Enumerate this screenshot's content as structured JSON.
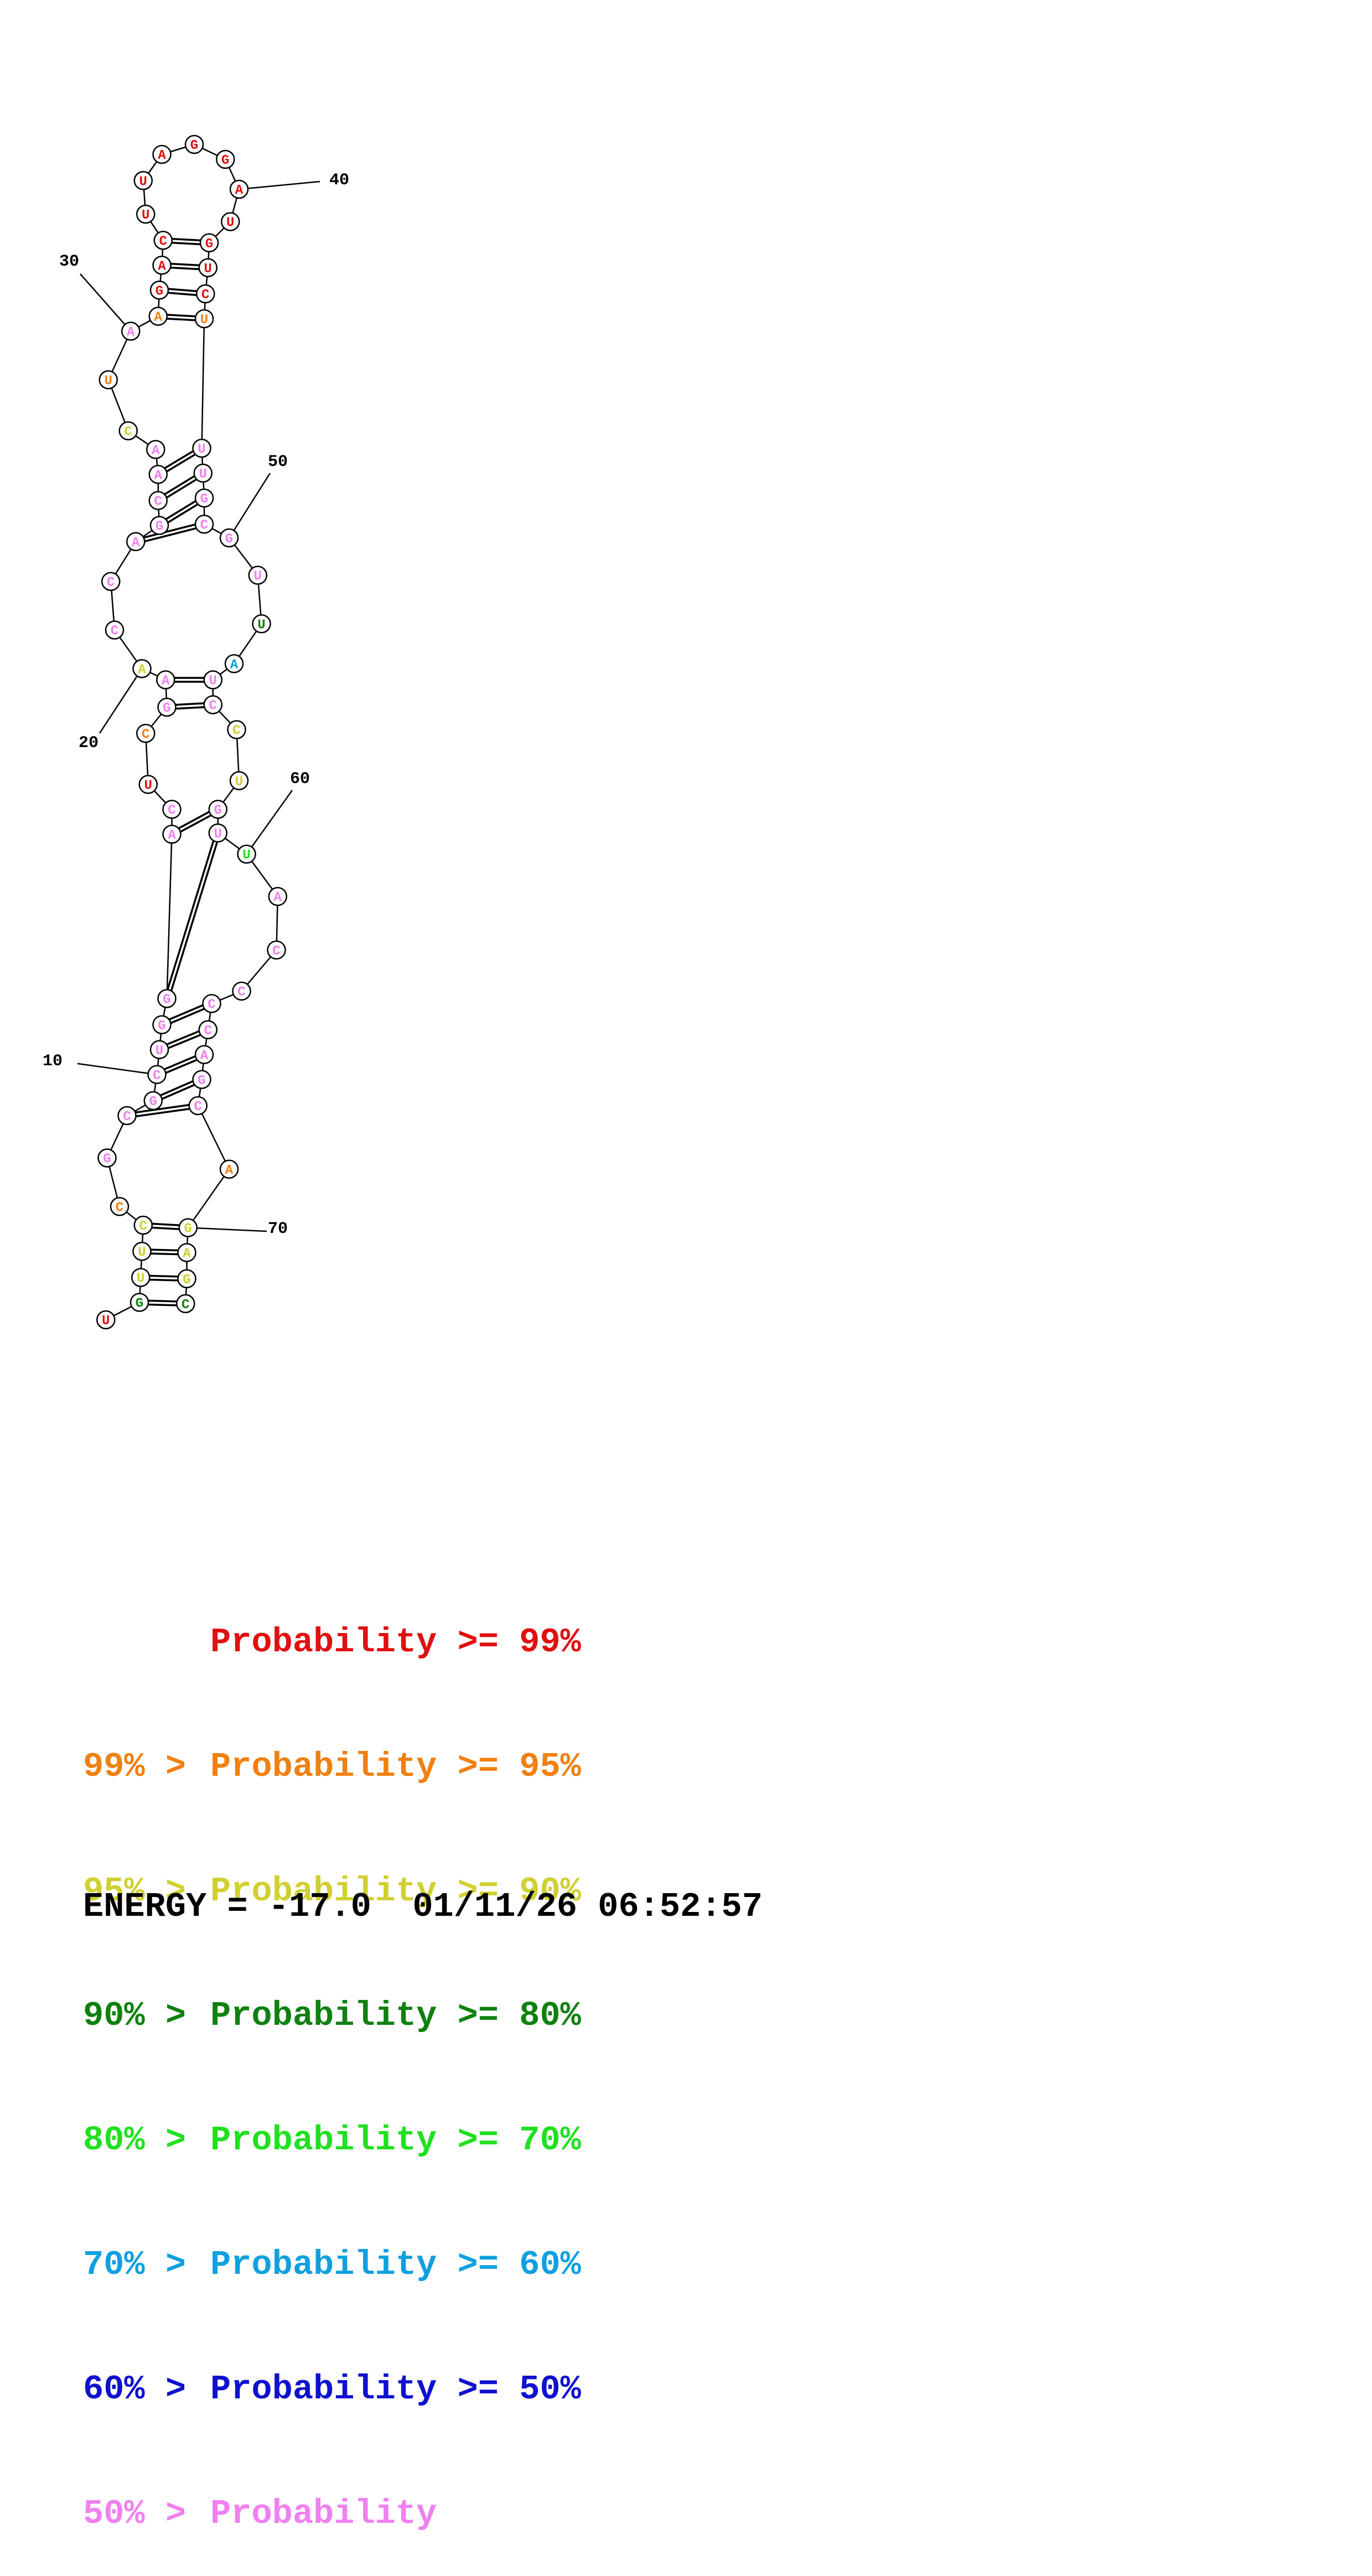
{
  "palette": {
    "R": "#e01010",
    "O": "#f08010",
    "Y": "#d0d030",
    "DG": "#108010",
    "LG": "#20e020",
    "C": "#10a0e0",
    "B": "#1010d0",
    "P": "#f080f0"
  },
  "chart_data": {
    "type": "rna_secondary_structure",
    "nucleotides": [
      {
        "n": 1,
        "base": "U",
        "prob": "R"
      },
      {
        "n": 2,
        "base": "G",
        "prob": "DG"
      },
      {
        "n": 3,
        "base": "U",
        "prob": "Y"
      },
      {
        "n": 4,
        "base": "U",
        "prob": "Y"
      },
      {
        "n": 5,
        "base": "C",
        "prob": "Y"
      },
      {
        "n": 6,
        "base": "C",
        "prob": "O"
      },
      {
        "n": 7,
        "base": "G",
        "prob": "P"
      },
      {
        "n": 8,
        "base": "C",
        "prob": "P"
      },
      {
        "n": 9,
        "base": "G",
        "prob": "P"
      },
      {
        "n": 10,
        "base": "C",
        "prob": "P"
      },
      {
        "n": 11,
        "base": "U",
        "prob": "P"
      },
      {
        "n": 12,
        "base": "G",
        "prob": "P"
      },
      {
        "n": 13,
        "base": "G",
        "prob": "P"
      },
      {
        "n": 14,
        "base": "A",
        "prob": "P"
      },
      {
        "n": 15,
        "base": "C",
        "prob": "P"
      },
      {
        "n": 16,
        "base": "U",
        "prob": "R"
      },
      {
        "n": 17,
        "base": "C",
        "prob": "O"
      },
      {
        "n": 18,
        "base": "G",
        "prob": "P"
      },
      {
        "n": 19,
        "base": "A",
        "prob": "P"
      },
      {
        "n": 20,
        "base": "A",
        "prob": "Y"
      },
      {
        "n": 21,
        "base": "C",
        "prob": "P"
      },
      {
        "n": 22,
        "base": "C",
        "prob": "P"
      },
      {
        "n": 23,
        "base": "A",
        "prob": "P"
      },
      {
        "n": 24,
        "base": "G",
        "prob": "P"
      },
      {
        "n": 25,
        "base": "C",
        "prob": "P"
      },
      {
        "n": 26,
        "base": "A",
        "prob": "P"
      },
      {
        "n": 27,
        "base": "A",
        "prob": "P"
      },
      {
        "n": 28,
        "base": "C",
        "prob": "Y"
      },
      {
        "n": 29,
        "base": "U",
        "prob": "O"
      },
      {
        "n": 30,
        "base": "A",
        "prob": "P"
      },
      {
        "n": 31,
        "base": "A",
        "prob": "O"
      },
      {
        "n": 32,
        "base": "G",
        "prob": "R"
      },
      {
        "n": 33,
        "base": "A",
        "prob": "R"
      },
      {
        "n": 34,
        "base": "C",
        "prob": "R"
      },
      {
        "n": 35,
        "base": "U",
        "prob": "R"
      },
      {
        "n": 36,
        "base": "U",
        "prob": "R"
      },
      {
        "n": 37,
        "base": "A",
        "prob": "R"
      },
      {
        "n": 38,
        "base": "G",
        "prob": "R"
      },
      {
        "n": 39,
        "base": "G",
        "prob": "R"
      },
      {
        "n": 40,
        "base": "A",
        "prob": "R"
      },
      {
        "n": 41,
        "base": "U",
        "prob": "R"
      },
      {
        "n": 42,
        "base": "G",
        "prob": "R"
      },
      {
        "n": 43,
        "base": "U",
        "prob": "R"
      },
      {
        "n": 44,
        "base": "C",
        "prob": "R"
      },
      {
        "n": 45,
        "base": "U",
        "prob": "O"
      },
      {
        "n": 46,
        "base": "U",
        "prob": "P"
      },
      {
        "n": 47,
        "base": "U",
        "prob": "P"
      },
      {
        "n": 48,
        "base": "G",
        "prob": "P"
      },
      {
        "n": 49,
        "base": "C",
        "prob": "P"
      },
      {
        "n": 50,
        "base": "G",
        "prob": "P"
      },
      {
        "n": 51,
        "base": "U",
        "prob": "P"
      },
      {
        "n": 52,
        "base": "U",
        "prob": "DG"
      },
      {
        "n": 53,
        "base": "A",
        "prob": "C"
      },
      {
        "n": 54,
        "base": "U",
        "prob": "P"
      },
      {
        "n": 55,
        "base": "C",
        "prob": "P"
      },
      {
        "n": 56,
        "base": "C",
        "prob": "Y"
      },
      {
        "n": 57,
        "base": "U",
        "prob": "Y"
      },
      {
        "n": 58,
        "base": "G",
        "prob": "P"
      },
      {
        "n": 59,
        "base": "U",
        "prob": "P"
      },
      {
        "n": 60,
        "base": "U",
        "prob": "LG"
      },
      {
        "n": 61,
        "base": "A",
        "prob": "P"
      },
      {
        "n": 62,
        "base": "C",
        "prob": "P"
      },
      {
        "n": 63,
        "base": "C",
        "prob": "P"
      },
      {
        "n": 64,
        "base": "C",
        "prob": "P"
      },
      {
        "n": 65,
        "base": "C",
        "prob": "P"
      },
      {
        "n": 66,
        "base": "A",
        "prob": "P"
      },
      {
        "n": 67,
        "base": "G",
        "prob": "P"
      },
      {
        "n": 68,
        "base": "C",
        "prob": "P"
      },
      {
        "n": 69,
        "base": "A",
        "prob": "O"
      },
      {
        "n": 70,
        "base": "G",
        "prob": "Y"
      },
      {
        "n": 71,
        "base": "A",
        "prob": "Y"
      },
      {
        "n": 72,
        "base": "G",
        "prob": "Y"
      },
      {
        "n": 73,
        "base": "C",
        "prob": "DG"
      }
    ],
    "base_pairs": [
      [
        2,
        73
      ],
      [
        3,
        72
      ],
      [
        4,
        71
      ],
      [
        5,
        70
      ],
      [
        8,
        68
      ],
      [
        9,
        67
      ],
      [
        10,
        66
      ],
      [
        11,
        65
      ],
      [
        12,
        64
      ],
      [
        13,
        59
      ],
      [
        14,
        58
      ],
      [
        18,
        55
      ],
      [
        19,
        54
      ],
      [
        23,
        49
      ],
      [
        24,
        48
      ],
      [
        25,
        47
      ],
      [
        26,
        46
      ],
      [
        31,
        45
      ],
      [
        32,
        44
      ],
      [
        33,
        43
      ],
      [
        34,
        42
      ]
    ],
    "position_labels": [
      "10",
      "20",
      "30",
      "40",
      "50",
      "60",
      "70"
    ]
  },
  "legend": [
    {
      "prefix": "",
      "middle": "Probability",
      "suffix": ">= 99%",
      "color": "R"
    },
    {
      "prefix": "99% >",
      "middle": "Probability",
      "suffix": ">= 95%",
      "color": "O"
    },
    {
      "prefix": "95% >",
      "middle": "Probability",
      "suffix": ">= 90%",
      "color": "Y"
    },
    {
      "prefix": "90% >",
      "middle": "Probability",
      "suffix": ">= 80%",
      "color": "DG"
    },
    {
      "prefix": "80% >",
      "middle": "Probability",
      "suffix": ">= 70%",
      "color": "LG"
    },
    {
      "prefix": "70% >",
      "middle": "Probability",
      "suffix": ">= 60%",
      "color": "C"
    },
    {
      "prefix": "60% >",
      "middle": "Probability",
      "suffix": ">= 50%",
      "color": "B"
    },
    {
      "prefix": "50% >",
      "middle": "Probability",
      "suffix": "",
      "color": "P"
    }
  ],
  "footer": {
    "energy": "ENERGY = -17.0",
    "timestamp": "01/11/26 06:52:57"
  }
}
